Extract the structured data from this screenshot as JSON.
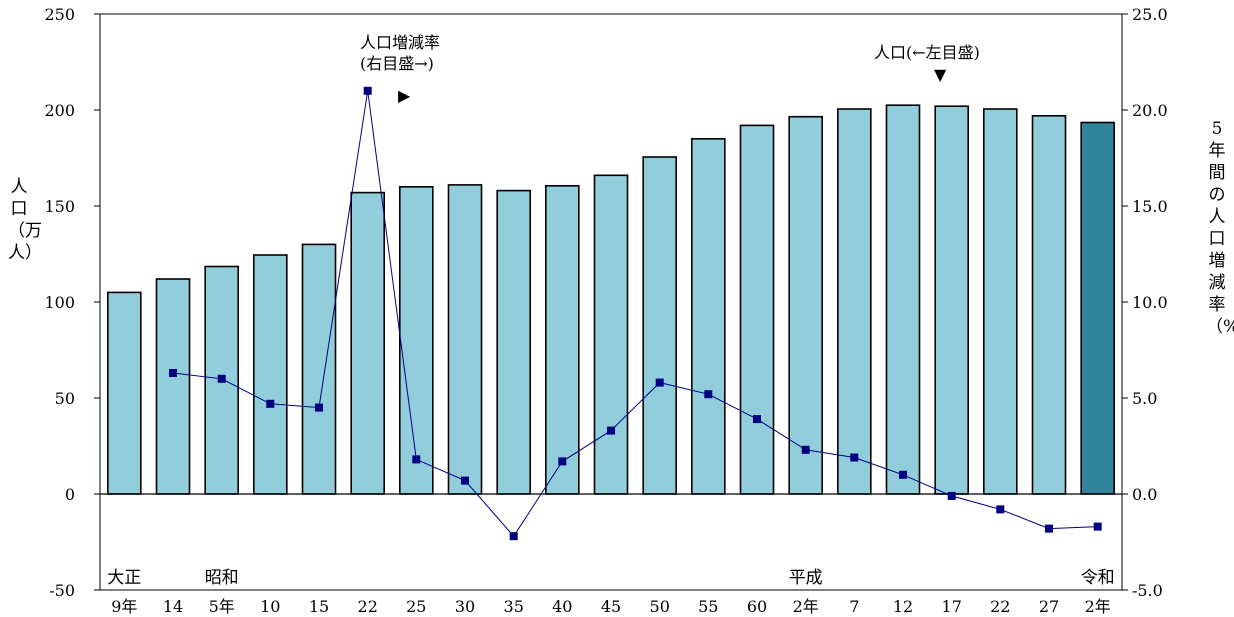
{
  "chart_data": {
    "type": "bar+line",
    "categories": [
      "9年",
      "14",
      "5年",
      "10",
      "15",
      "22",
      "25",
      "30",
      "35",
      "40",
      "45",
      "50",
      "55",
      "60",
      "2年",
      "7",
      "12",
      "17",
      "22",
      "27",
      "2年"
    ],
    "eras": [
      {
        "label": "大正",
        "index": 0
      },
      {
        "label": "昭和",
        "index": 2
      },
      {
        "label": "平成",
        "index": 14
      },
      {
        "label": "令和",
        "index": 20
      }
    ],
    "series": [
      {
        "name": "人口",
        "axis": "left",
        "type": "bar",
        "values": [
          105,
          112,
          118.5,
          124.5,
          130,
          157,
          160,
          161,
          158,
          160.5,
          166,
          175.5,
          185,
          192,
          196.5,
          200.5,
          202.5,
          202,
          200.5,
          197,
          193.5
        ],
        "color": "#92CDDC",
        "highlight_color": "#31849B"
      },
      {
        "name": "人口増減率",
        "axis": "right",
        "type": "line",
        "values": [
          null,
          6.3,
          6.0,
          4.7,
          4.5,
          21.0,
          1.8,
          0.7,
          -2.2,
          1.7,
          3.3,
          5.8,
          5.2,
          3.9,
          2.3,
          1.9,
          1.0,
          -0.1,
          -0.8,
          -1.8,
          -1.7
        ],
        "color": "#000080"
      }
    ],
    "left_axis": {
      "ticks": [
        "250",
        "200",
        "150",
        "100",
        "50",
        "0",
        "-50"
      ],
      "ylim": [
        -50,
        250
      ],
      "label": "人口（万人）"
    },
    "right_axis": {
      "ticks": [
        "25.0",
        "20.0",
        "15.0",
        "10.0",
        "5.0",
        "0.0",
        "-5.0"
      ],
      "ylim": [
        -5,
        25
      ],
      "label": "5年間の人口増減率（%）"
    },
    "annotations": {
      "rate_title": "人口増減率",
      "rate_note": "(右目盛→)",
      "pop_note": "人口(←左目盛)",
      "rate_marker": "▶",
      "pop_marker": "▼"
    },
    "grid": false
  }
}
